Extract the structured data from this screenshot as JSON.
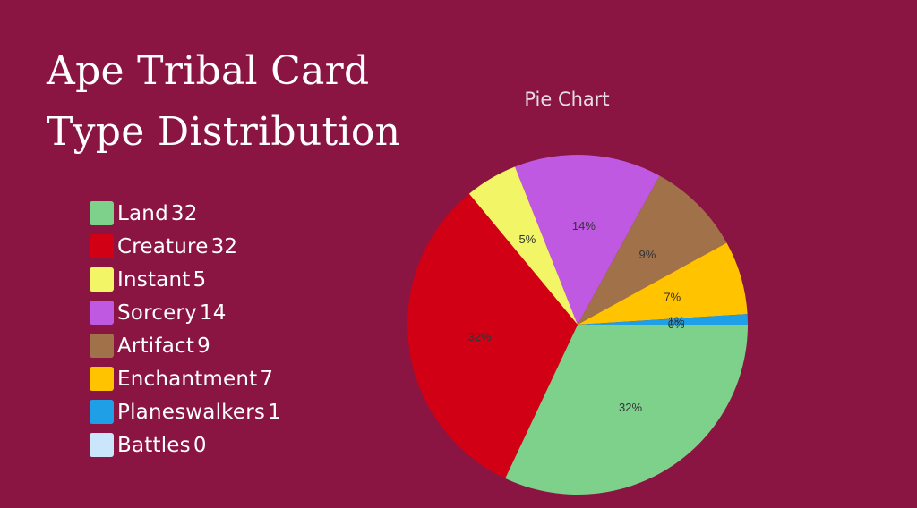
{
  "page": {
    "background": "#8a1442"
  },
  "heading": {
    "line1": "Ape Tribal Card",
    "line2": "Type Distribution"
  },
  "chart_data": {
    "type": "pie",
    "title": "Pie Chart",
    "legend_position": "left",
    "slices": [
      {
        "name": "Land",
        "value": 32,
        "color": "#7dd18a",
        "pct_label": "32%"
      },
      {
        "name": "Creature",
        "value": 32,
        "color": "#d20015",
        "pct_label": "32%"
      },
      {
        "name": "Instant",
        "value": 5,
        "color": "#f1f566",
        "pct_label": "5%"
      },
      {
        "name": "Sorcery",
        "value": 14,
        "color": "#bf59e2",
        "pct_label": "14%"
      },
      {
        "name": "Artifact",
        "value": 9,
        "color": "#a1714a",
        "pct_label": "9%"
      },
      {
        "name": "Enchantment",
        "value": 7,
        "color": "#ffc300",
        "pct_label": "7%"
      },
      {
        "name": "Planeswalkers",
        "value": 1,
        "color": "#1e9fe6",
        "pct_label": "1%"
      },
      {
        "name": "Battles",
        "value": 0,
        "color": "#c9e6fb",
        "pct_label": "0%"
      }
    ]
  }
}
